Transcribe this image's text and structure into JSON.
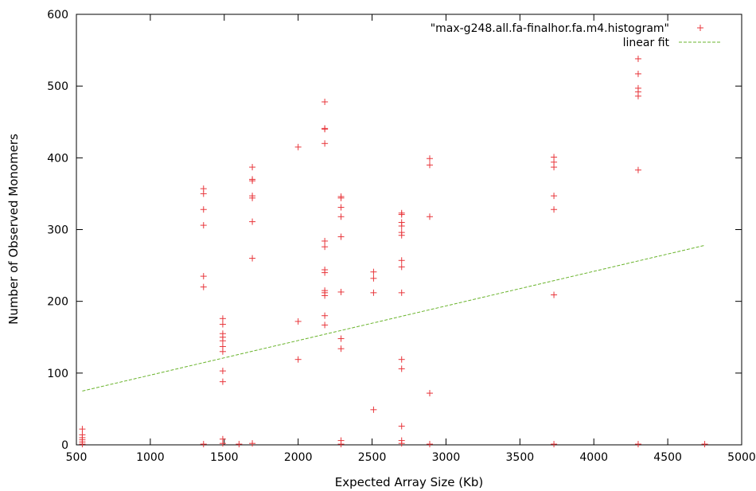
{
  "chart_data": {
    "type": "scatter",
    "title": "",
    "xlabel": "Expected Array Size (Kb)",
    "ylabel": "Number of Observed Monomers",
    "xlim": [
      500,
      5000
    ],
    "ylim": [
      0,
      600
    ],
    "xticks": [
      500,
      1000,
      1500,
      2000,
      2500,
      3000,
      3500,
      4000,
      4500,
      5000
    ],
    "yticks": [
      0,
      100,
      200,
      300,
      400,
      500,
      600
    ],
    "grid": false,
    "legend_position": "top-right",
    "series": [
      {
        "name": "\"max-g248.all.fa-finalhor.fa.m4.histogram\"",
        "kind": "points",
        "marker": "plus",
        "color": "#e8363b",
        "points": [
          [
            540,
            22
          ],
          [
            540,
            14
          ],
          [
            540,
            10
          ],
          [
            540,
            7
          ],
          [
            540,
            4
          ],
          [
            540,
            1
          ],
          [
            1360,
            357
          ],
          [
            1360,
            350
          ],
          [
            1360,
            328
          ],
          [
            1360,
            306
          ],
          [
            1360,
            235
          ],
          [
            1360,
            220
          ],
          [
            1360,
            1
          ],
          [
            1490,
            176
          ],
          [
            1490,
            168
          ],
          [
            1490,
            155
          ],
          [
            1490,
            150
          ],
          [
            1490,
            145
          ],
          [
            1490,
            137
          ],
          [
            1490,
            130
          ],
          [
            1490,
            103
          ],
          [
            1490,
            88
          ],
          [
            1490,
            8
          ],
          [
            1490,
            2
          ],
          [
            1600,
            1
          ],
          [
            1690,
            387
          ],
          [
            1690,
            370
          ],
          [
            1690,
            368
          ],
          [
            1690,
            347
          ],
          [
            1690,
            344
          ],
          [
            1690,
            311
          ],
          [
            1690,
            260
          ],
          [
            1690,
            2
          ],
          [
            2000,
            415
          ],
          [
            2000,
            172
          ],
          [
            2000,
            119
          ],
          [
            2180,
            478
          ],
          [
            2180,
            441
          ],
          [
            2180,
            440
          ],
          [
            2180,
            420
          ],
          [
            2180,
            284
          ],
          [
            2180,
            276
          ],
          [
            2180,
            244
          ],
          [
            2180,
            240
          ],
          [
            2180,
            215
          ],
          [
            2180,
            212
          ],
          [
            2180,
            208
          ],
          [
            2180,
            180
          ],
          [
            2180,
            167
          ],
          [
            2290,
            346
          ],
          [
            2290,
            344
          ],
          [
            2290,
            331
          ],
          [
            2290,
            318
          ],
          [
            2290,
            290
          ],
          [
            2290,
            213
          ],
          [
            2290,
            148
          ],
          [
            2290,
            134
          ],
          [
            2290,
            6
          ],
          [
            2290,
            1
          ],
          [
            2510,
            241
          ],
          [
            2510,
            232
          ],
          [
            2510,
            212
          ],
          [
            2510,
            49
          ],
          [
            2700,
            323
          ],
          [
            2700,
            321
          ],
          [
            2700,
            310
          ],
          [
            2700,
            305
          ],
          [
            2700,
            296
          ],
          [
            2700,
            292
          ],
          [
            2700,
            257
          ],
          [
            2700,
            248
          ],
          [
            2700,
            212
          ],
          [
            2700,
            119
          ],
          [
            2700,
            106
          ],
          [
            2700,
            26
          ],
          [
            2700,
            6
          ],
          [
            2700,
            2
          ],
          [
            2890,
            399
          ],
          [
            2890,
            390
          ],
          [
            2890,
            318
          ],
          [
            2890,
            72
          ],
          [
            2890,
            1
          ],
          [
            3730,
            401
          ],
          [
            3730,
            394
          ],
          [
            3730,
            387
          ],
          [
            3730,
            347
          ],
          [
            3730,
            328
          ],
          [
            3730,
            209
          ],
          [
            3730,
            1
          ],
          [
            4300,
            538
          ],
          [
            4300,
            517
          ],
          [
            4300,
            497
          ],
          [
            4300,
            492
          ],
          [
            4300,
            486
          ],
          [
            4300,
            383
          ],
          [
            4300,
            1
          ],
          [
            4750,
            1
          ]
        ]
      },
      {
        "name": "linear fit",
        "kind": "line",
        "style": "dashed",
        "color": "#6ab42d",
        "points": [
          [
            540,
            75
          ],
          [
            4750,
            278
          ]
        ]
      }
    ]
  }
}
